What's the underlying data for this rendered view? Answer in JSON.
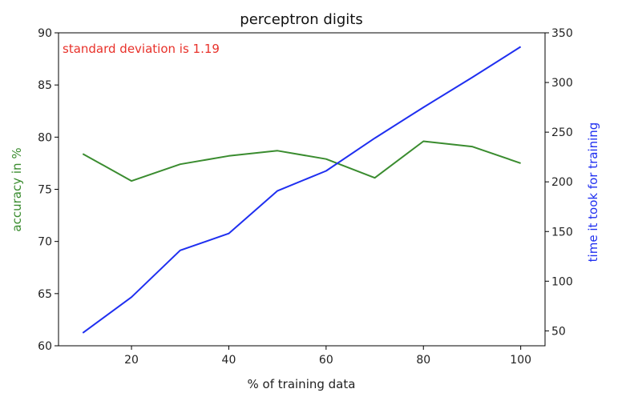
{
  "chart_data": {
    "type": "line",
    "title": "perceptron digits",
    "xlabel": "% of training data",
    "ylabel_left": "accuracy in %",
    "ylabel_right": "time it took for training",
    "annotation": "standard deviation is 1.19",
    "x": [
      10,
      20,
      30,
      40,
      50,
      60,
      70,
      80,
      90,
      100
    ],
    "xlim": [
      5,
      105
    ],
    "xticks": [
      "20",
      "40",
      "60",
      "80",
      "100"
    ],
    "ylim_left": [
      60,
      90
    ],
    "yticks_left": [
      "60",
      "65",
      "70",
      "75",
      "80",
      "85",
      "90"
    ],
    "ylim_right": [
      35,
      350
    ],
    "yticks_right": [
      "50",
      "100",
      "150",
      "200",
      "250",
      "300",
      "350"
    ],
    "grid": false,
    "series": [
      {
        "axis": "left",
        "color": "#3a8c2f",
        "values": [
          78.4,
          75.8,
          77.4,
          78.2,
          78.7,
          77.9,
          76.1,
          79.6,
          79.1,
          77.5
        ]
      },
      {
        "axis": "right",
        "color": "#1f2ff0",
        "values": [
          48,
          84,
          131,
          148,
          191,
          211,
          244,
          275,
          305,
          336
        ]
      }
    ],
    "colors": {
      "annotation": "#e8312a",
      "left_label": "#3a8c2f",
      "right_label": "#1f2ff0",
      "axes": "#000000"
    }
  }
}
